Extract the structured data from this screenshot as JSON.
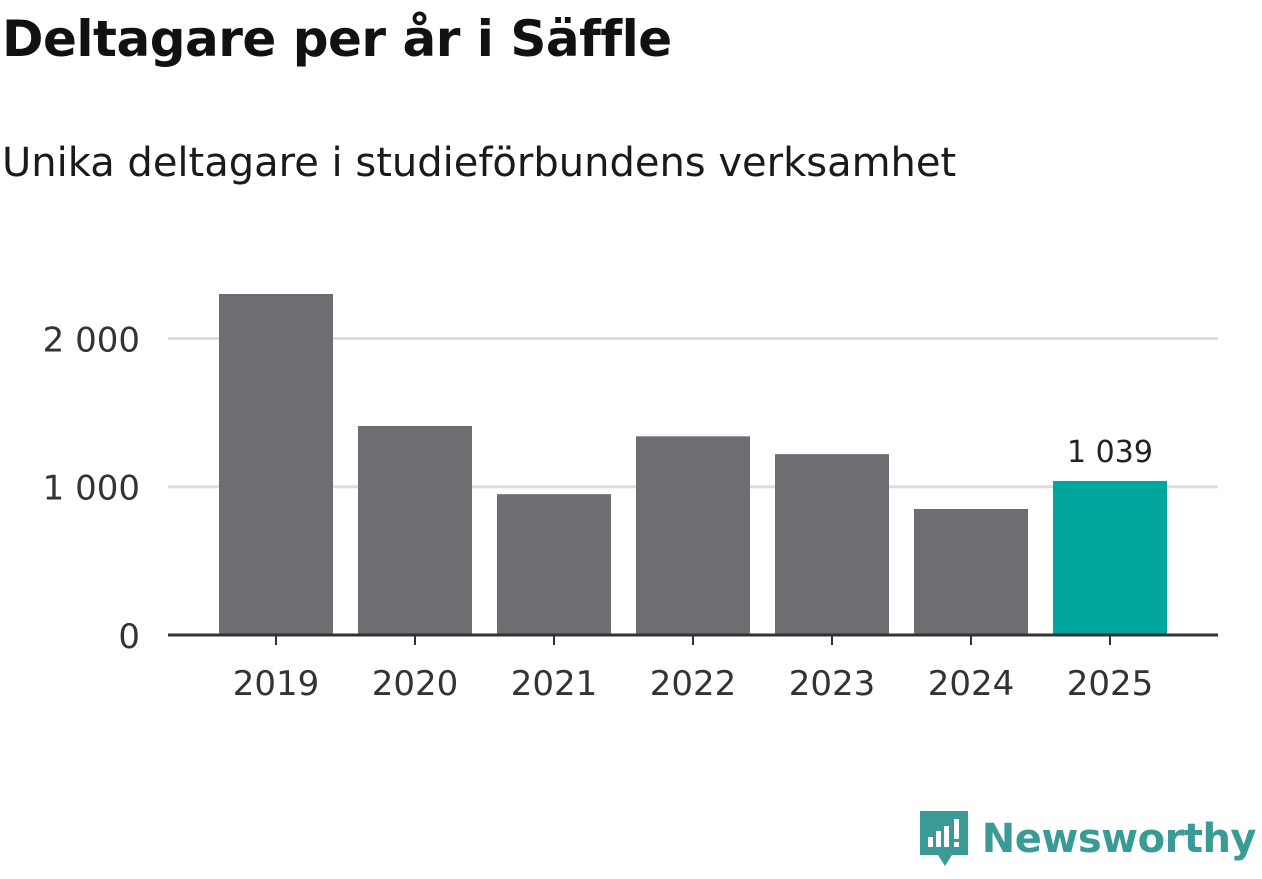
{
  "chart_data": {
    "type": "bar",
    "title": "Deltagare per år i Säffle",
    "subtitle": "Unika deltagare i studieförbundens verksamhet",
    "categories": [
      "2019",
      "2020",
      "2021",
      "2022",
      "2023",
      "2024",
      "2025"
    ],
    "values": [
      2300,
      1410,
      950,
      1340,
      1220,
      850,
      1039
    ],
    "highlight_index": 6,
    "highlight_label": "1 039",
    "xlabel": "",
    "ylabel": "",
    "ylim": [
      0,
      2300
    ],
    "yticks": [
      0,
      1000,
      2000
    ],
    "ytick_labels": [
      "0",
      "1 000",
      "2 000"
    ],
    "grid": true,
    "colors": {
      "bar": "#6e6d72",
      "highlight": "#00a69c",
      "grid": "#dddddd",
      "axis": "#333333"
    }
  },
  "branding": {
    "name": "Newsworthy",
    "color": "#3a9a96",
    "icon": "newsworthy-logo-icon"
  }
}
